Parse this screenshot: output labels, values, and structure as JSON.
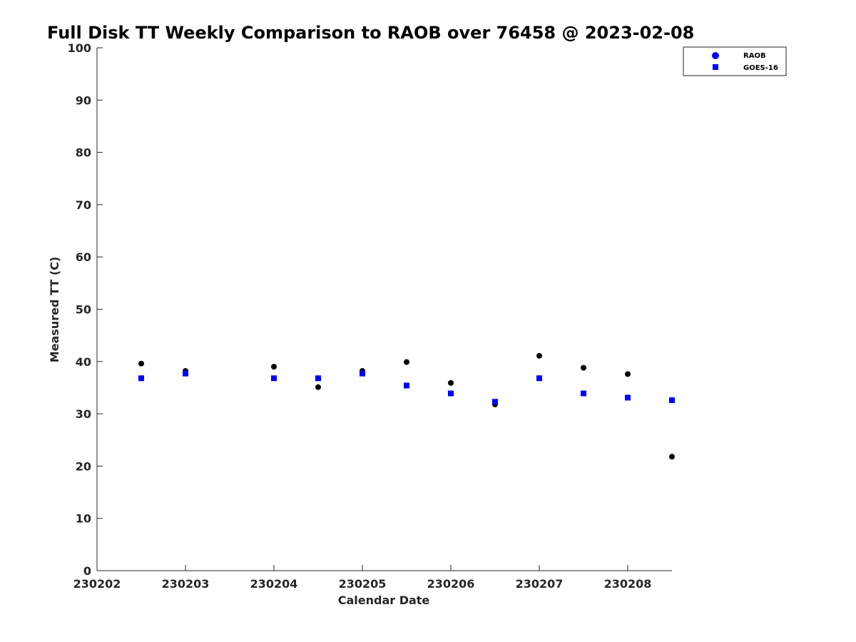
{
  "chart_data": {
    "type": "scatter",
    "title": "Full Disk TT Weekly Comparison to RAOB over 76458 @ 2023-02-08",
    "xlabel": "Calendar Date",
    "ylabel": "Measured TT (C)",
    "xlim": [
      230202,
      230208.5
    ],
    "ylim": [
      0,
      100
    ],
    "x_ticks": [
      "230202",
      "230203",
      "230204",
      "230205",
      "230206",
      "230207",
      "230208"
    ],
    "y_ticks": [
      "0",
      "10",
      "20",
      "30",
      "40",
      "50",
      "60",
      "70",
      "80",
      "90",
      "100"
    ],
    "legend_position": "top-right (outside plot)",
    "grid": false,
    "series": [
      {
        "name": "RAOB",
        "marker": "circle",
        "color": "#000000",
        "legend_color": "#0000ff",
        "points": [
          {
            "x": 230202.5,
            "y": 39.6
          },
          {
            "x": 230203.0,
            "y": 38.2
          },
          {
            "x": 230204.0,
            "y": 39.0
          },
          {
            "x": 230204.5,
            "y": 35.1
          },
          {
            "x": 230205.0,
            "y": 38.2
          },
          {
            "x": 230205.5,
            "y": 39.9
          },
          {
            "x": 230206.0,
            "y": 35.9
          },
          {
            "x": 230206.5,
            "y": 31.8
          },
          {
            "x": 230207.0,
            "y": 41.1
          },
          {
            "x": 230207.5,
            "y": 38.8
          },
          {
            "x": 230208.0,
            "y": 37.6
          },
          {
            "x": 230208.5,
            "y": 21.8
          }
        ]
      },
      {
        "name": "GOES-16",
        "marker": "square",
        "color": "#0000ff",
        "points": [
          {
            "x": 230202.5,
            "y": 36.8
          },
          {
            "x": 230203.0,
            "y": 37.7
          },
          {
            "x": 230204.0,
            "y": 36.8
          },
          {
            "x": 230204.5,
            "y": 36.8
          },
          {
            "x": 230205.0,
            "y": 37.7
          },
          {
            "x": 230205.5,
            "y": 35.4
          },
          {
            "x": 230206.0,
            "y": 33.9
          },
          {
            "x": 230206.5,
            "y": 32.3
          },
          {
            "x": 230207.0,
            "y": 36.8
          },
          {
            "x": 230207.5,
            "y": 33.9
          },
          {
            "x": 230208.0,
            "y": 33.1
          },
          {
            "x": 230208.5,
            "y": 32.6
          }
        ]
      }
    ]
  }
}
